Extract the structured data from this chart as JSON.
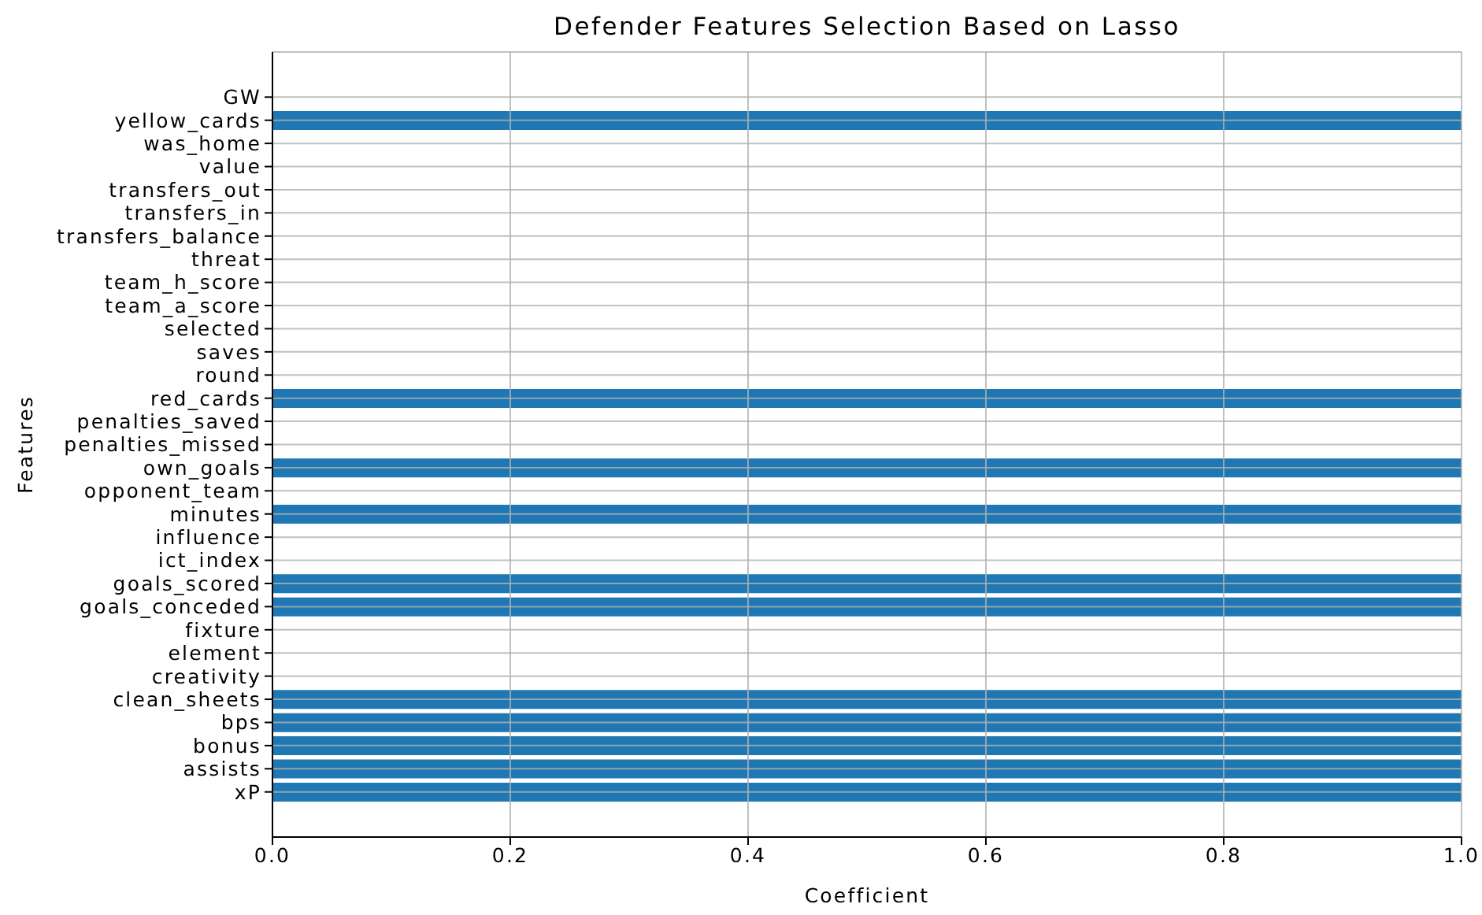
{
  "chart_data": {
    "type": "bar",
    "orientation": "horizontal",
    "title": "Defender Features Selection Based on Lasso",
    "xlabel": "Coefficient",
    "ylabel": "Features",
    "categories": [
      "GW",
      "yellow_cards",
      "was_home",
      "value",
      "transfers_out",
      "transfers_in",
      "transfers_balance",
      "threat",
      "team_h_score",
      "team_a_score",
      "selected",
      "saves",
      "round",
      "red_cards",
      "penalties_saved",
      "penalties_missed",
      "own_goals",
      "opponent_team",
      "minutes",
      "influence",
      "ict_index",
      "goals_scored",
      "goals_conceded",
      "fixture",
      "element",
      "creativity",
      "clean_sheets",
      "bps",
      "bonus",
      "assists",
      "xP"
    ],
    "values": [
      0,
      1,
      0,
      0,
      0,
      0,
      0,
      0,
      0,
      0,
      0,
      0,
      0,
      1,
      0,
      0,
      1,
      0,
      1,
      0,
      0,
      1,
      1,
      0,
      0,
      0,
      1,
      1,
      1,
      1,
      1
    ],
    "color": "#1f77b4",
    "xlim": [
      0,
      1
    ],
    "xticks": [
      {
        "value": 0,
        "label": "0.0"
      },
      0.2,
      0.4,
      0.6,
      0.8,
      {
        "value": 1,
        "label": "1.0"
      }
    ],
    "grid": true
  }
}
